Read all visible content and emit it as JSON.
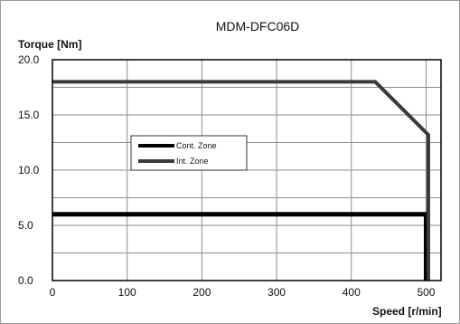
{
  "chart_data": {
    "type": "line",
    "title": "MDM-DFC06D",
    "ylabel": "Torque [Nm]",
    "xlabel": "Speed [r/min]",
    "xlim": [
      0,
      520
    ],
    "ylim": [
      0,
      20
    ],
    "x_ticks": [
      0,
      100,
      200,
      300,
      400,
      500
    ],
    "x_tick_labels": [
      "0",
      "100",
      "200",
      "300",
      "400",
      "500"
    ],
    "y_ticks": [
      0,
      5,
      10,
      15,
      20
    ],
    "y_tick_labels": [
      "0.0",
      "5.0",
      "10.0",
      "15.0",
      "20.0"
    ],
    "x_grid": [
      100,
      200,
      300,
      400,
      500
    ],
    "y_grid": [
      2.5,
      5,
      7.5,
      10,
      12.5,
      15,
      17.5
    ],
    "legend_position": "center-left",
    "series": [
      {
        "name": "Cont. Zone",
        "color": "#000000",
        "points": [
          [
            0,
            6.0
          ],
          [
            500,
            6.0
          ],
          [
            500,
            0
          ]
        ]
      },
      {
        "name": "Int. Zone",
        "color": "#3a3a3a",
        "points": [
          [
            0,
            18.0
          ],
          [
            432,
            18.0
          ],
          [
            503,
            13.2
          ],
          [
            503,
            0
          ]
        ]
      }
    ]
  }
}
